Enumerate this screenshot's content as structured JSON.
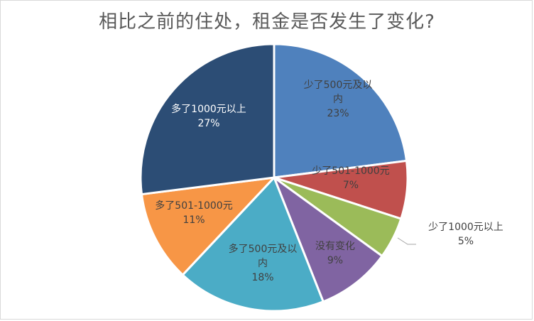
{
  "chart_data": {
    "type": "pie",
    "title": "相比之前的住处，租金是否发生了变化?",
    "start_angle_deg": 0,
    "direction": "clockwise",
    "legend": "none",
    "slices": [
      {
        "label_lines": [
          "少了500元及以",
          "内"
        ],
        "percent_text": "23%",
        "value": 23,
        "color": "#4f81bd",
        "label_color": "#404040"
      },
      {
        "label_lines": [
          "少了501-1000元"
        ],
        "percent_text": "7%",
        "value": 7,
        "color": "#c0504d",
        "label_color": "#404040"
      },
      {
        "label_lines": [
          "少了1000元以上"
        ],
        "percent_text": "5%",
        "value": 5,
        "color": "#9bbb59",
        "label_color": "#404040"
      },
      {
        "label_lines": [
          "没有变化"
        ],
        "percent_text": "9%",
        "value": 9,
        "color": "#8064a2",
        "label_color": "#404040"
      },
      {
        "label_lines": [
          "多了500元及以",
          "内"
        ],
        "percent_text": "18%",
        "value": 18,
        "color": "#4bacc6",
        "label_color": "#404040"
      },
      {
        "label_lines": [
          "多了501-1000元"
        ],
        "percent_text": "11%",
        "value": 11,
        "color": "#f79646",
        "label_color": "#404040"
      },
      {
        "label_lines": [
          "多了1000元以上"
        ],
        "percent_text": "27%",
        "value": 27,
        "color": "#2c4d75",
        "label_color": "#ffffff"
      }
    ]
  }
}
